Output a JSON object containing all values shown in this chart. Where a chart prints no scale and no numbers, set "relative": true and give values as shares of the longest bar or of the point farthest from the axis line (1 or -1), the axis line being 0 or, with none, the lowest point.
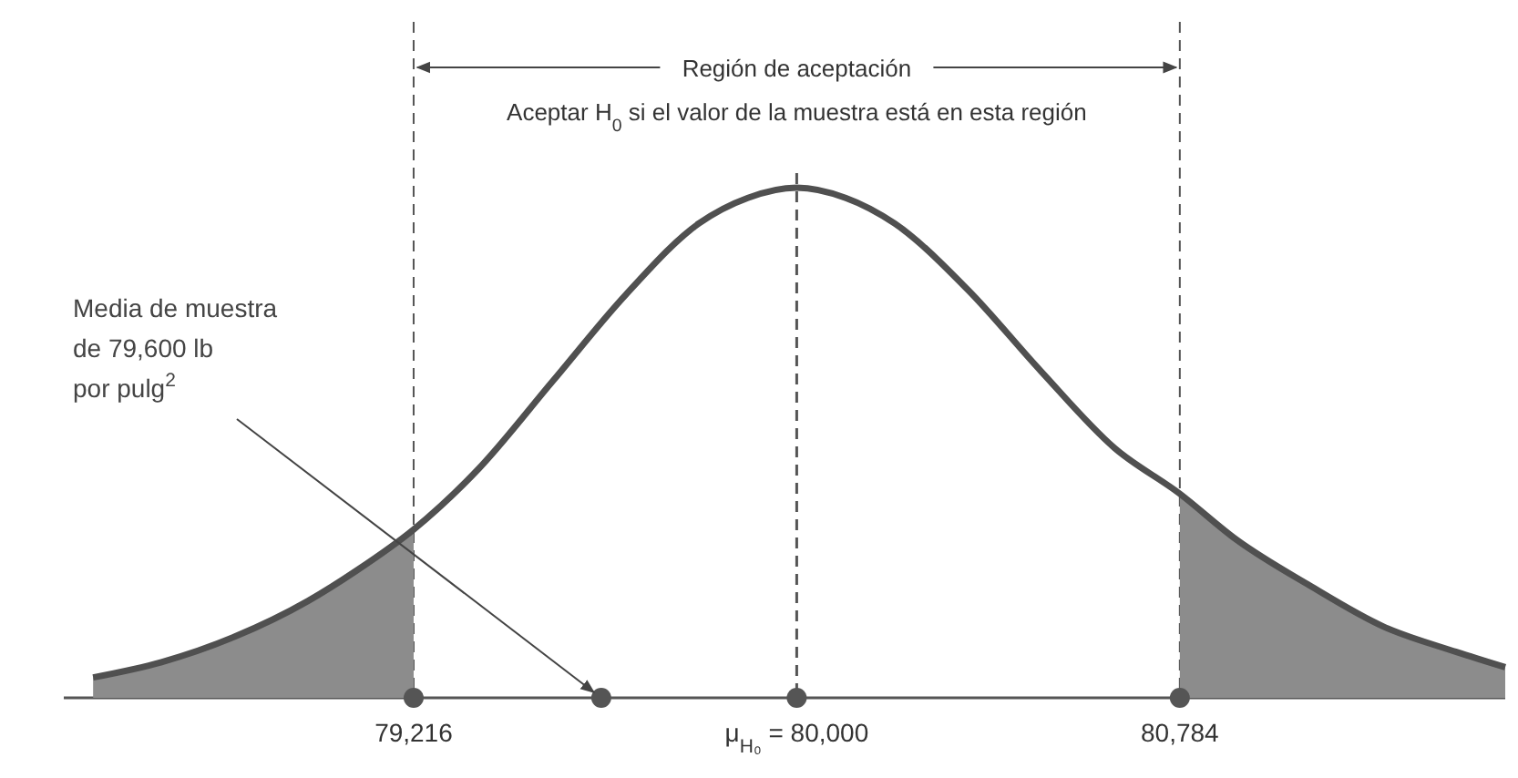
{
  "chart_data": {
    "type": "line",
    "relative": true,
    "x": [
      78560,
      78700,
      78850,
      79000,
      79100,
      79216,
      79350,
      79500,
      79650,
      79800,
      79900,
      80000,
      80100,
      80200,
      80350,
      80500,
      80650,
      80784,
      80900,
      81050,
      81200,
      81350,
      81450
    ],
    "series": [
      {
        "type": "area",
        "color": "#8c8c8c",
        "x": [
          78560,
          78700,
          78850,
          79000,
          79100,
          79216
        ],
        "values": [
          0.04,
          0.07,
          0.12,
          0.19,
          0.25,
          0.33
        ]
      },
      {
        "type": "area",
        "color": "#8c8c8c",
        "x": [
          80784,
          80900,
          81050,
          81200,
          81350,
          81450
        ],
        "values": [
          0.4,
          0.31,
          0.22,
          0.14,
          0.09,
          0.06
        ]
      },
      {
        "color": "#505050",
        "values": [
          0.04,
          0.07,
          0.12,
          0.19,
          0.25,
          0.33,
          0.45,
          0.62,
          0.79,
          0.93,
          0.98,
          1.0,
          0.98,
          0.93,
          0.8,
          0.64,
          0.49,
          0.4,
          0.31,
          0.22,
          0.14,
          0.09,
          0.06
        ]
      },
      {
        "type": "scatter",
        "color": "#555555",
        "marker": "circle",
        "x": [
          79216,
          79600,
          80000,
          80784
        ],
        "values": [
          0,
          0,
          0,
          0
        ]
      }
    ],
    "xlim": [
      78500,
      81450
    ],
    "xticks": [
      {
        "value": 79216,
        "label": "79,216"
      },
      {
        "value": 80000,
        "label": "μ$_{H₀}$ = 80,000"
      },
      {
        "value": 80784,
        "label": "80,784"
      }
    ],
    "ref_lines": [
      {
        "axis": "x",
        "value": 79216,
        "line_style": "dashed"
      },
      {
        "axis": "x",
        "value": 80000,
        "line_style": "dashed"
      },
      {
        "axis": "x",
        "value": 80784,
        "line_style": "dashed"
      }
    ],
    "annotations": [
      "Región de aceptación",
      "Aceptar H$_{0}$ si el valor de la muestra está en esta región",
      {
        "text": "Media de muestra\nde 79,600 lb\npor pulg$^{2}$",
        "x": 79600,
        "y": 0
      }
    ]
  }
}
